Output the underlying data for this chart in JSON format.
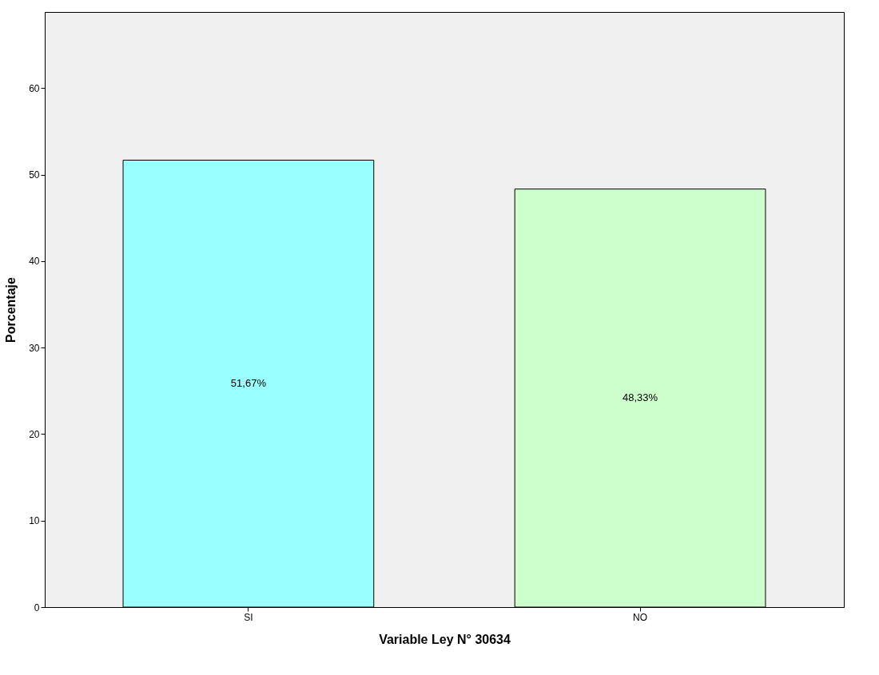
{
  "chart_data": {
    "type": "bar",
    "xlabel": "Variable Ley N° 30634",
    "ylabel": "Porcentaje",
    "categories": [
      "SI",
      "NO"
    ],
    "values": [
      51.67,
      48.33
    ],
    "colors": [
      "#99ffff",
      "#ccffcc"
    ],
    "value_labels": [
      "51,67%",
      "48,33%"
    ],
    "ylim": [
      0,
      68.8
    ],
    "yticks": [
      0,
      10,
      20,
      30,
      40,
      50,
      60
    ],
    "grid": false
  }
}
